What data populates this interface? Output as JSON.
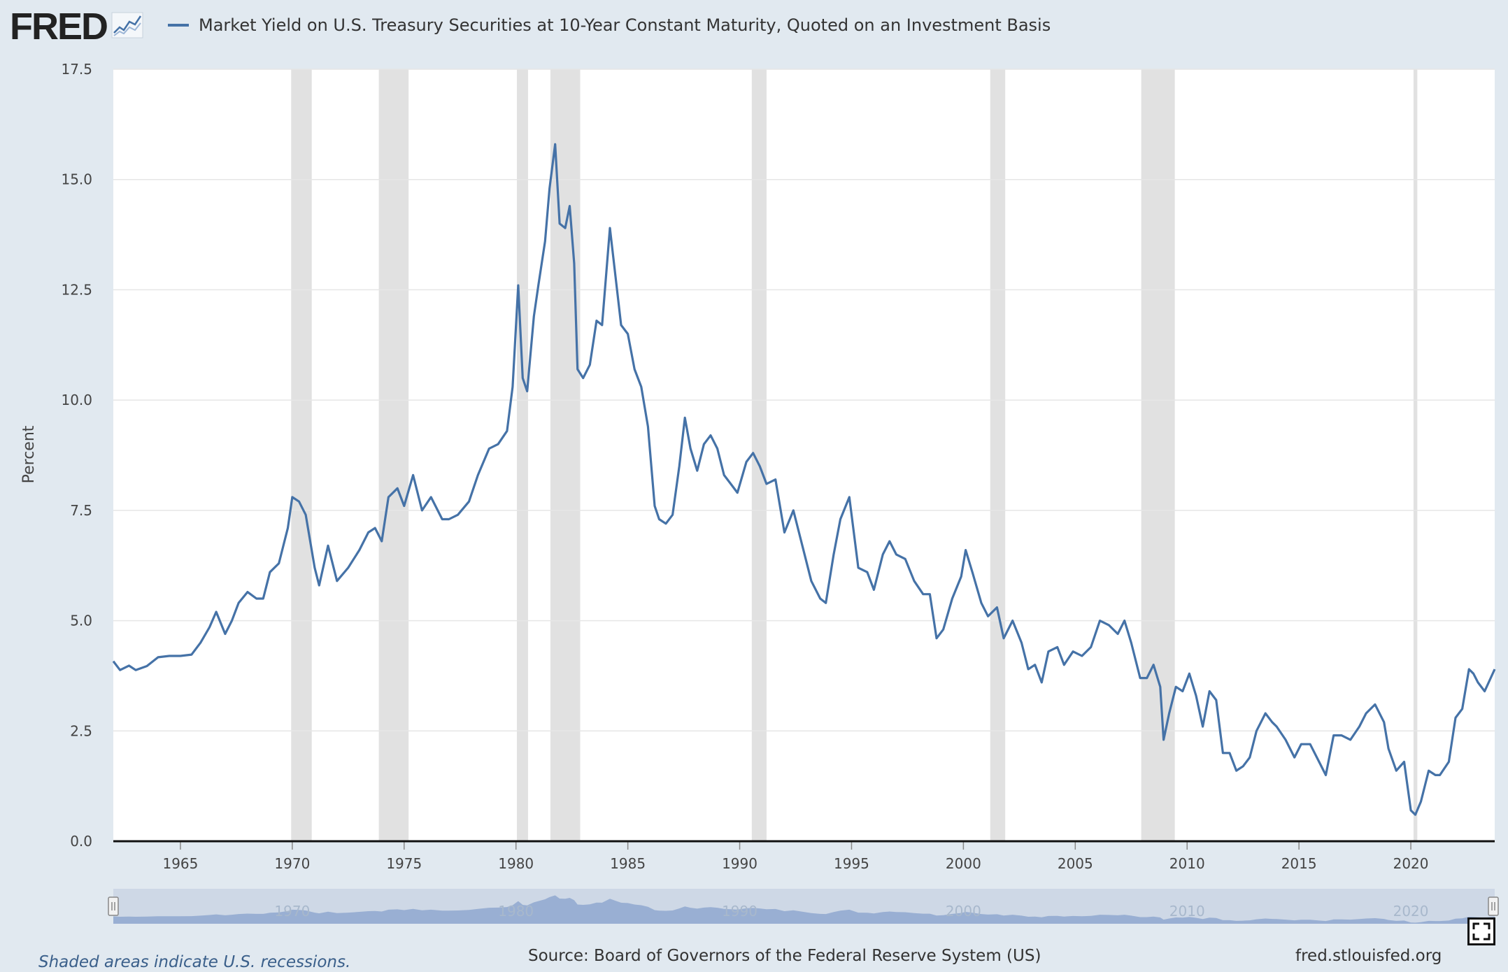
{
  "header": {
    "logo_text": "FRED",
    "logo_icon": "line-graph-icon",
    "series_title": "Market Yield on U.S. Treasury Securities at 10-Year Constant Maturity, Quoted on an Investment Basis"
  },
  "footer": {
    "recession_note": "Shaded areas indicate U.S. recessions.",
    "source": "Source: Board of Governors of the Federal Reserve System (US)",
    "site": "fred.stlouisfed.org",
    "fullscreen_icon": "fullscreen-icon"
  },
  "colors": {
    "series_line": "#4572a7",
    "recession_band": "#e1e1e1",
    "background": "#e1e9f0",
    "navigator_fill": "#8fa8cf"
  },
  "chart_data": {
    "type": "line",
    "title": "Market Yield on U.S. Treasury Securities at 10-Year Constant Maturity, Quoted on an Investment Basis",
    "xlabel": "",
    "ylabel": "Percent",
    "xlim": [
      1962.0,
      2023.75
    ],
    "ylim": [
      0,
      17.5
    ],
    "y_ticks": [
      "0.0",
      "2.5",
      "5.0",
      "7.5",
      "10.0",
      "12.5",
      "15.0",
      "17.5"
    ],
    "x_ticks": [
      "1965",
      "1970",
      "1975",
      "1980",
      "1985",
      "1990",
      "1995",
      "2000",
      "2005",
      "2010",
      "2015",
      "2020"
    ],
    "navigator_ticks": [
      "1970",
      "1980",
      "1990",
      "2000",
      "2010",
      "2020"
    ],
    "grid": true,
    "recessions": [
      [
        1969.95,
        1970.87
      ],
      [
        1973.87,
        1975.2
      ],
      [
        1980.04,
        1980.54
      ],
      [
        1981.54,
        1982.87
      ],
      [
        1990.54,
        1991.2
      ],
      [
        2001.2,
        2001.87
      ],
      [
        2007.95,
        2009.45
      ],
      [
        2020.12,
        2020.29
      ]
    ],
    "series": [
      {
        "name": "Market Yield on U.S. Treasury Securities at 10-Year Constant Maturity, Quoted on an Investment Basis",
        "x": [
          1962.0,
          1962.3,
          1962.7,
          1963.0,
          1963.5,
          1964.0,
          1964.5,
          1965.0,
          1965.5,
          1965.9,
          1966.3,
          1966.6,
          1967.0,
          1967.3,
          1967.6,
          1968.0,
          1968.4,
          1968.7,
          1969.0,
          1969.4,
          1969.8,
          1970.0,
          1970.3,
          1970.6,
          1971.0,
          1971.2,
          1971.6,
          1972.0,
          1972.5,
          1973.0,
          1973.4,
          1973.7,
          1974.0,
          1974.3,
          1974.7,
          1975.0,
          1975.4,
          1975.8,
          1976.2,
          1976.7,
          1977.0,
          1977.4,
          1977.9,
          1978.3,
          1978.8,
          1979.2,
          1979.6,
          1979.85,
          1980.1,
          1980.3,
          1980.5,
          1980.8,
          1981.0,
          1981.3,
          1981.5,
          1981.75,
          1981.95,
          1982.2,
          1982.4,
          1982.6,
          1982.75,
          1983.0,
          1983.3,
          1983.6,
          1983.85,
          1984.2,
          1984.45,
          1984.7,
          1985.0,
          1985.3,
          1985.6,
          1985.9,
          1986.2,
          1986.4,
          1986.7,
          1987.0,
          1987.3,
          1987.55,
          1987.8,
          1988.1,
          1988.4,
          1988.7,
          1989.0,
          1989.3,
          1989.6,
          1989.9,
          1990.3,
          1990.6,
          1990.9,
          1991.2,
          1991.6,
          1992.0,
          1992.4,
          1992.8,
          1993.2,
          1993.6,
          1993.85,
          1994.2,
          1994.5,
          1994.9,
          1995.3,
          1995.7,
          1996.0,
          1996.4,
          1996.7,
          1997.0,
          1997.4,
          1997.8,
          1998.2,
          1998.5,
          1998.8,
          1999.1,
          1999.5,
          1999.9,
          2000.1,
          2000.4,
          2000.8,
          2001.1,
          2001.5,
          2001.8,
          2002.2,
          2002.6,
          2002.9,
          2003.2,
          2003.5,
          2003.8,
          2004.2,
          2004.5,
          2004.9,
          2005.3,
          2005.7,
          2006.1,
          2006.5,
          2006.9,
          2007.2,
          2007.5,
          2007.9,
          2008.2,
          2008.5,
          2008.8,
          2008.95,
          2009.2,
          2009.5,
          2009.8,
          2010.1,
          2010.4,
          2010.7,
          2011.0,
          2011.3,
          2011.6,
          2011.9,
          2012.2,
          2012.5,
          2012.8,
          2013.1,
          2013.5,
          2013.8,
          2014.0,
          2014.4,
          2014.8,
          2015.1,
          2015.5,
          2015.9,
          2016.2,
          2016.55,
          2016.9,
          2017.3,
          2017.7,
          2018.0,
          2018.4,
          2018.8,
          2019.0,
          2019.35,
          2019.7,
          2020.0,
          2020.2,
          2020.45,
          2020.8,
          2021.1,
          2021.3,
          2021.7,
          2022.0,
          2022.3,
          2022.6,
          2022.8,
          2023.0,
          2023.3,
          2023.75
        ],
        "values": [
          4.08,
          3.88,
          3.98,
          3.88,
          3.97,
          4.17,
          4.2,
          4.2,
          4.23,
          4.5,
          4.85,
          5.2,
          4.7,
          5.0,
          5.4,
          5.65,
          5.5,
          5.5,
          6.1,
          6.3,
          7.1,
          7.8,
          7.7,
          7.4,
          6.2,
          5.8,
          6.7,
          5.9,
          6.2,
          6.6,
          7.0,
          7.1,
          6.8,
          7.8,
          8.0,
          7.6,
          8.3,
          7.5,
          7.8,
          7.3,
          7.3,
          7.4,
          7.7,
          8.3,
          8.9,
          9.0,
          9.3,
          10.3,
          12.6,
          10.5,
          10.2,
          11.9,
          12.6,
          13.6,
          14.8,
          15.8,
          14.0,
          13.9,
          14.4,
          13.1,
          10.7,
          10.5,
          10.8,
          11.8,
          11.7,
          13.9,
          12.8,
          11.7,
          11.5,
          10.7,
          10.3,
          9.4,
          7.6,
          7.3,
          7.2,
          7.4,
          8.5,
          9.6,
          8.9,
          8.4,
          9.0,
          9.2,
          8.9,
          8.3,
          8.1,
          7.9,
          8.6,
          8.8,
          8.5,
          8.1,
          8.2,
          7.0,
          7.5,
          6.7,
          5.9,
          5.5,
          5.4,
          6.5,
          7.3,
          7.8,
          6.2,
          6.1,
          5.7,
          6.5,
          6.8,
          6.5,
          6.4,
          5.9,
          5.6,
          5.6,
          4.6,
          4.8,
          5.5,
          6.0,
          6.6,
          6.1,
          5.4,
          5.1,
          5.3,
          4.6,
          5.0,
          4.5,
          3.9,
          4.0,
          3.6,
          4.3,
          4.4,
          4.0,
          4.3,
          4.2,
          4.4,
          5.0,
          4.9,
          4.7,
          5.0,
          4.5,
          3.7,
          3.7,
          4.0,
          3.5,
          2.3,
          2.9,
          3.5,
          3.4,
          3.8,
          3.3,
          2.6,
          3.4,
          3.2,
          2.0,
          2.0,
          1.6,
          1.7,
          1.9,
          2.5,
          2.9,
          2.7,
          2.6,
          2.3,
          1.9,
          2.2,
          2.2,
          1.8,
          1.5,
          2.4,
          2.4,
          2.3,
          2.6,
          2.9,
          3.1,
          2.7,
          2.1,
          1.6,
          1.8,
          0.7,
          0.6,
          0.9,
          1.6,
          1.5,
          1.5,
          1.8,
          2.8,
          3.0,
          3.9,
          3.8,
          3.6,
          3.4,
          3.9
        ]
      }
    ]
  }
}
